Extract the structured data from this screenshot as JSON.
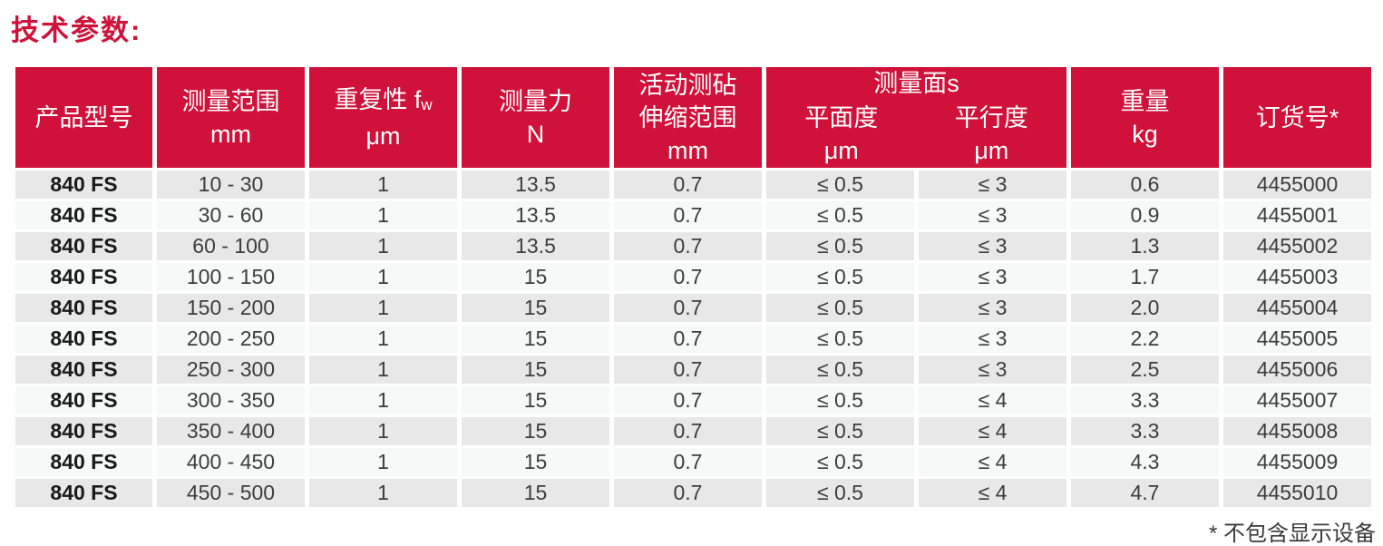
{
  "page": {
    "title": "技术参数:",
    "footnote": "* 不包含显示设备"
  },
  "colors": {
    "brand_red": "#D0113A",
    "row_odd_bg": "#E8E8E8",
    "row_even_bg": "#F7F8F8",
    "data_text": "#3D3D3D"
  },
  "table": {
    "headers": {
      "product_model": "产品型号",
      "measuring_range": "测量范围",
      "measuring_range_unit": "mm",
      "repeatability": "重复性 f",
      "repeatability_sub": "w",
      "repeatability_unit": "μm",
      "measuring_force": "测量力",
      "measuring_force_unit": "N",
      "anvil_travel_line1": "活动测砧",
      "anvil_travel_line2": "伸缩范围",
      "anvil_travel_unit": "mm",
      "measuring_faces_group": "测量面s",
      "flatness": "平面度",
      "flatness_unit": "μm",
      "parallelism": "平行度",
      "parallelism_unit": "μm",
      "weight": "重量",
      "weight_unit": "kg",
      "order_number": "订货号*"
    },
    "rows": [
      [
        "840 FS",
        "10 - 30",
        "1",
        "13.5",
        "0.7",
        "≤ 0.5",
        "≤ 3",
        "0.6",
        "4455000"
      ],
      [
        "840 FS",
        "30 - 60",
        "1",
        "13.5",
        "0.7",
        "≤ 0.5",
        "≤ 3",
        "0.9",
        "4455001"
      ],
      [
        "840 FS",
        "60 - 100",
        "1",
        "13.5",
        "0.7",
        "≤ 0.5",
        "≤ 3",
        "1.3",
        "4455002"
      ],
      [
        "840 FS",
        "100 - 150",
        "1",
        "15",
        "0.7",
        "≤ 0.5",
        "≤ 3",
        "1.7",
        "4455003"
      ],
      [
        "840 FS",
        "150 - 200",
        "1",
        "15",
        "0.7",
        "≤ 0.5",
        "≤ 3",
        "2.0",
        "4455004"
      ],
      [
        "840 FS",
        "200 - 250",
        "1",
        "15",
        "0.7",
        "≤ 0.5",
        "≤ 3",
        "2.2",
        "4455005"
      ],
      [
        "840 FS",
        "250 - 300",
        "1",
        "15",
        "0.7",
        "≤ 0.5",
        "≤ 3",
        "2.5",
        "4455006"
      ],
      [
        "840 FS",
        "300 - 350",
        "1",
        "15",
        "0.7",
        "≤ 0.5",
        "≤ 4",
        "3.3",
        "4455007"
      ],
      [
        "840 FS",
        "350 - 400",
        "1",
        "15",
        "0.7",
        "≤ 0.5",
        "≤ 4",
        "3.3",
        "4455008"
      ],
      [
        "840 FS",
        "400 - 450",
        "1",
        "15",
        "0.7",
        "≤ 0.5",
        "≤ 4",
        "4.3",
        "4455009"
      ],
      [
        "840 FS",
        "450 - 500",
        "1",
        "15",
        "0.7",
        "≤ 0.5",
        "≤ 4",
        "4.7",
        "4455010"
      ]
    ]
  }
}
